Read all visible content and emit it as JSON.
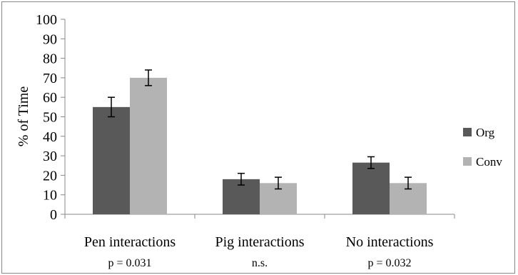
{
  "chart_data": {
    "type": "bar",
    "ylabel": "% of Time",
    "ylim": [
      0,
      100
    ],
    "yticks": [
      0,
      10,
      20,
      30,
      40,
      50,
      60,
      70,
      80,
      90,
      100
    ],
    "categories": [
      "Pen interactions",
      "Pig interactions",
      "No interactions"
    ],
    "category_notes": [
      "p = 0.031",
      "n.s.",
      "p = 0.032"
    ],
    "series": [
      {
        "name": "Org",
        "values": [
          55,
          18,
          26.5
        ],
        "errors": [
          5,
          3,
          3
        ],
        "color": "#595959"
      },
      {
        "name": "Conv",
        "values": [
          70,
          16,
          16
        ],
        "errors": [
          4,
          3,
          3
        ],
        "color": "#b3b3b3"
      }
    ],
    "legend_position": "right",
    "grid": false
  }
}
